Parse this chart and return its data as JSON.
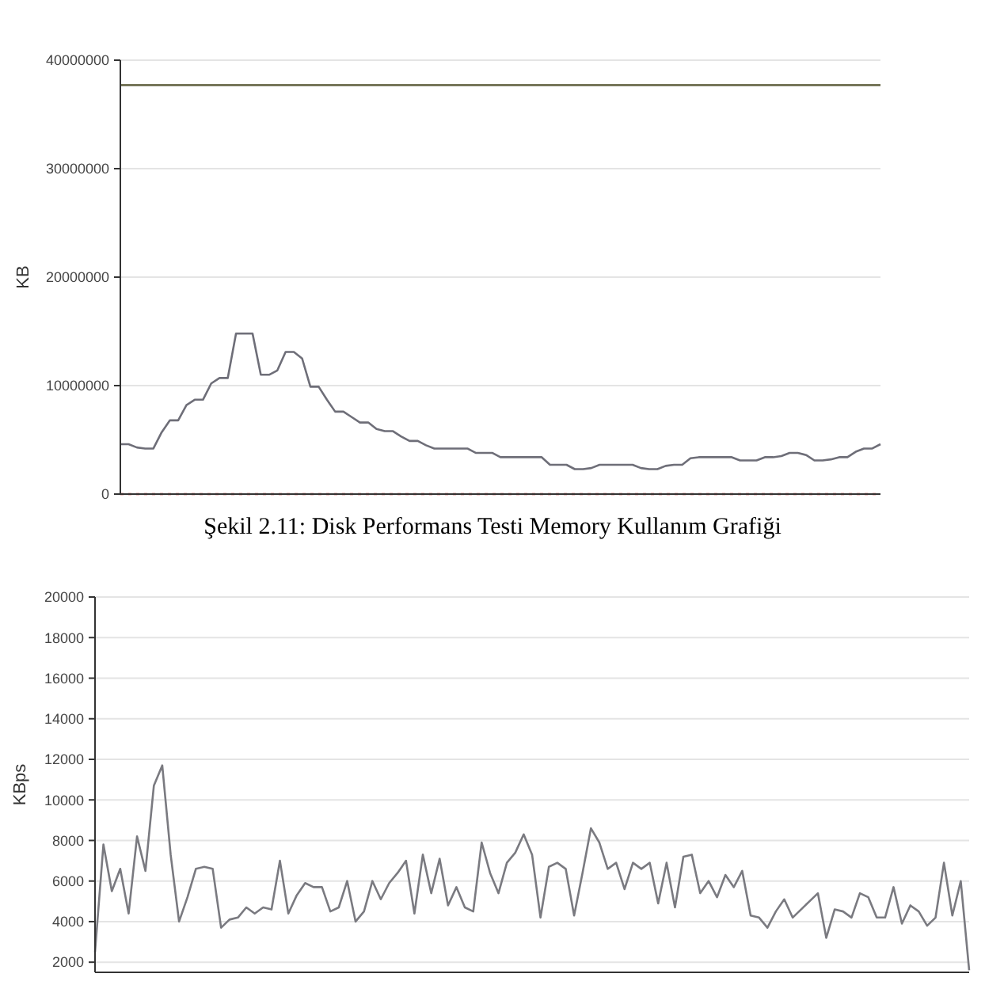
{
  "chart_data": [
    {
      "type": "line",
      "ylabel": "KB",
      "ylim": [
        0,
        40000000
      ],
      "categories": [
        null,
        null,
        null,
        null,
        null,
        null,
        null,
        null,
        null,
        null,
        null,
        null,
        null,
        null,
        null,
        null,
        null,
        null,
        null,
        null,
        null,
        null,
        null,
        null,
        null,
        null,
        null,
        null,
        null,
        null,
        null,
        null,
        null,
        null,
        null,
        null,
        null,
        null,
        null,
        null,
        null,
        null,
        null,
        null,
        null,
        null,
        null,
        null,
        null,
        null,
        null,
        null,
        null,
        null,
        null,
        null,
        null,
        null,
        null,
        null,
        null,
        null,
        null,
        null,
        null,
        null,
        null,
        null,
        null,
        null,
        null,
        null,
        null,
        null,
        null,
        null,
        null,
        null,
        null,
        null,
        null,
        null,
        null,
        null,
        null,
        null,
        null,
        null,
        null,
        null,
        null,
        null,
        null
      ],
      "yticks": [
        0,
        10000000,
        20000000,
        30000000,
        40000000
      ],
      "grid": "y",
      "tick_labels": "y",
      "ref_lines": [
        {
          "axis": "y",
          "value": 37700000,
          "color": "#76765a",
          "line_style": "solid"
        },
        {
          "axis": "y",
          "value": 0,
          "color": "#e08a8a",
          "line_style": "dotted"
        }
      ],
      "annotations": [
        "Şekil 2.11: Disk Performans Testi Memory Kullanım Grafiği"
      ],
      "series": [
        {
          "color": "#6e6e78",
          "values": [
            4600000,
            4600000,
            4300000,
            4200000,
            4200000,
            5700000,
            6800000,
            6800000,
            8200000,
            8700000,
            8700000,
            10200000,
            10700000,
            10700000,
            14800000,
            14800000,
            14800000,
            11000000,
            11000000,
            11400000,
            13100000,
            13100000,
            12500000,
            9900000,
            9900000,
            8700000,
            7600000,
            7600000,
            7100000,
            6600000,
            6600000,
            6000000,
            5800000,
            5800000,
            5300000,
            4900000,
            4900000,
            4500000,
            4200000,
            4200000,
            4200000,
            4200000,
            4200000,
            3800000,
            3800000,
            3800000,
            3400000,
            3400000,
            3400000,
            3400000,
            3400000,
            3400000,
            2700000,
            2700000,
            2700000,
            2300000,
            2300000,
            2400000,
            2700000,
            2700000,
            2700000,
            2700000,
            2700000,
            2400000,
            2300000,
            2300000,
            2600000,
            2700000,
            2700000,
            3300000,
            3400000,
            3400000,
            3400000,
            3400000,
            3400000,
            3100000,
            3100000,
            3100000,
            3400000,
            3400000,
            3500000,
            3800000,
            3800000,
            3600000,
            3100000,
            3100000,
            3200000,
            3400000,
            3400000,
            3900000,
            4200000,
            4200000,
            4600000
          ]
        }
      ]
    },
    {
      "type": "line",
      "ylabel": "KBps",
      "ylim": [
        1500,
        20000
      ],
      "categories": [
        null,
        null,
        null,
        null,
        null,
        null,
        null,
        null,
        null,
        null,
        null,
        null,
        null,
        null,
        null,
        null,
        null,
        null,
        null,
        null,
        null,
        null,
        null,
        null,
        null,
        null,
        null,
        null,
        null,
        null,
        null,
        null,
        null,
        null,
        null,
        null,
        null,
        null,
        null,
        null,
        null,
        null,
        null,
        null,
        null,
        null,
        null,
        null,
        null,
        null,
        null,
        null,
        null,
        null,
        null,
        null,
        null,
        null,
        null,
        null,
        null,
        null,
        null,
        null,
        null,
        null,
        null,
        null,
        null,
        null,
        null,
        null,
        null,
        null,
        null,
        null,
        null,
        null,
        null,
        null,
        null,
        null,
        null,
        null,
        null,
        null,
        null,
        null,
        null,
        null,
        null,
        null,
        null,
        null,
        null,
        null,
        null,
        null,
        null,
        null,
        null,
        null,
        null,
        null,
        null
      ],
      "yticks": [
        2000,
        4000,
        6000,
        8000,
        10000,
        12000,
        14000,
        16000,
        18000,
        20000
      ],
      "grid": "y",
      "tick_labels": "y",
      "series": [
        {
          "color": "#7a7a80",
          "values": [
            2500,
            7800,
            5500,
            6600,
            4400,
            8200,
            6500,
            10700,
            11700,
            7300,
            4000,
            5200,
            6600,
            6700,
            6600,
            3700,
            4100,
            4200,
            4700,
            4400,
            4700,
            4600,
            7000,
            4400,
            5300,
            5900,
            5700,
            5700,
            4500,
            4700,
            6000,
            4000,
            4500,
            6000,
            5100,
            5900,
            6400,
            7000,
            4400,
            7300,
            5400,
            7100,
            4800,
            5700,
            4700,
            4500,
            7900,
            6400,
            5400,
            6900,
            7400,
            8300,
            7300,
            4200,
            6700,
            6900,
            6600,
            4300,
            6400,
            8600,
            7900,
            6600,
            6900,
            5600,
            6900,
            6600,
            6900,
            4900,
            6900,
            4700,
            7200,
            7300,
            5400,
            6000,
            5200,
            6300,
            5700,
            6500,
            4300,
            4200,
            3700,
            4500,
            5100,
            4200,
            4600,
            5000,
            5400,
            3200,
            4600,
            4500,
            4200,
            5400,
            5200,
            4200,
            4200,
            5700,
            3900,
            4800,
            4500,
            3800,
            4200,
            6900,
            4300,
            6000,
            1600
          ]
        }
      ]
    }
  ]
}
